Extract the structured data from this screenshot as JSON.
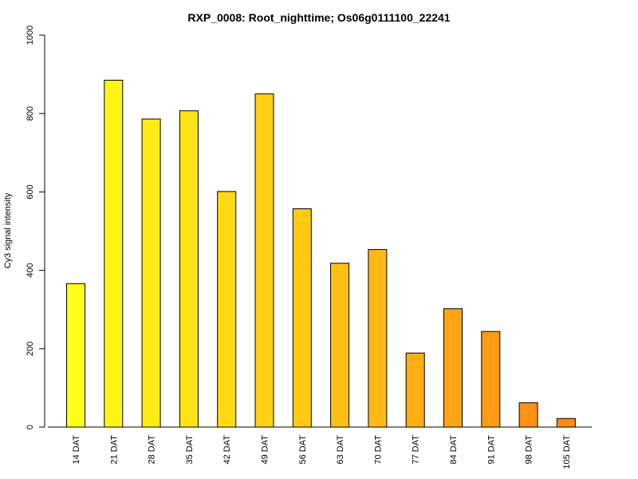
{
  "chart_data": {
    "type": "bar",
    "title": "RXP_0008: Root_nighttime; Os06g0111100_22241",
    "xlabel": "",
    "ylabel": "Cy3 signal intensity",
    "ylim": [
      0,
      1000
    ],
    "yticks": [
      0,
      200,
      400,
      600,
      800,
      1000
    ],
    "categories": [
      "14 DAT",
      "21 DAT",
      "28 DAT",
      "35 DAT",
      "42 DAT",
      "49 DAT",
      "56 DAT",
      "63 DAT",
      "70 DAT",
      "77 DAT",
      "84 DAT",
      "91 DAT",
      "98 DAT",
      "105 DAT"
    ],
    "values": [
      366,
      885,
      786,
      807,
      601,
      850,
      557,
      418,
      453,
      189,
      302,
      244,
      62,
      22
    ],
    "bar_colors": [
      "#FFFF1A",
      "#FFF514",
      "#FFEB14",
      "#FFE315",
      "#FFDA14",
      "#FFD114",
      "#FFC914",
      "#FFC014",
      "#FFB814",
      "#FFAE14",
      "#FFA414",
      "#FF9B14",
      "#FF9214",
      "#FF8A14"
    ],
    "grid": false,
    "legend": "none"
  }
}
